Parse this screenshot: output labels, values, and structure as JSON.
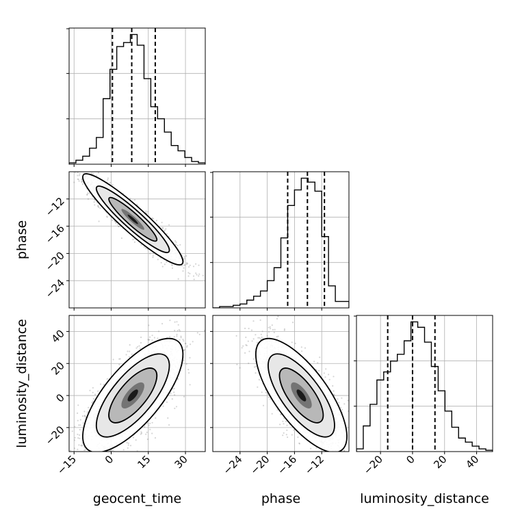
{
  "chart_data": {
    "type": "corner",
    "parameters": [
      "geocent_time",
      "phase",
      "luminosity_distance"
    ],
    "ranges": {
      "geocent_time": [
        -17,
        38
      ],
      "phase": [
        -28,
        -8
      ],
      "luminosity_distance": [
        -35,
        50
      ]
    },
    "quantiles": {
      "geocent_time": [
        0.5,
        8.3,
        17.8
      ],
      "phase": [
        -17.0,
        -14.1,
        -11.6
      ],
      "luminosity_distance": [
        -15.5,
        0.0,
        14.0
      ]
    },
    "correlations": {
      "geocent_time|phase": -0.93,
      "geocent_time|luminosity_distance": 0.72,
      "phase|luminosity_distance": -0.72
    },
    "histograms": {
      "geocent_time": {
        "edges": [
          -17,
          -14.25,
          -11.5,
          -8.75,
          -6,
          -3.25,
          -0.5,
          2.25,
          5,
          7.75,
          10.5,
          13.25,
          16,
          18.75,
          21.5,
          24.25,
          27,
          29.75,
          32.5,
          35.25,
          38
        ],
        "counts": [
          0.01,
          0.03,
          0.06,
          0.12,
          0.2,
          0.49,
          0.71,
          0.88,
          0.91,
          0.97,
          0.89,
          0.64,
          0.43,
          0.34,
          0.24,
          0.14,
          0.1,
          0.05,
          0.02,
          0.01
        ]
      },
      "phase": {
        "edges": [
          -28,
          -27,
          -26,
          -25,
          -24,
          -23,
          -22,
          -21,
          -20,
          -19,
          -18,
          -17,
          -16,
          -15,
          -14,
          -13,
          -12,
          -11,
          -10,
          -9,
          -8
        ],
        "counts": [
          0.0,
          0.01,
          0.01,
          0.02,
          0.03,
          0.06,
          0.09,
          0.13,
          0.21,
          0.31,
          0.54,
          0.79,
          0.91,
          1.0,
          0.97,
          0.9,
          0.55,
          0.17,
          0.05,
          0.05
        ]
      },
      "luminosity_distance": {
        "edges": [
          -35,
          -30.75,
          -26.5,
          -22.25,
          -18,
          -13.75,
          -9.5,
          -5.25,
          -1,
          3.25,
          7.5,
          11.75,
          16,
          20.25,
          24.5,
          28.75,
          33,
          37.25,
          41.5,
          45.75,
          50
        ],
        "counts": [
          0.02,
          0.19,
          0.35,
          0.53,
          0.59,
          0.67,
          0.72,
          0.82,
          0.96,
          0.92,
          0.81,
          0.63,
          0.45,
          0.3,
          0.18,
          0.1,
          0.07,
          0.04,
          0.02,
          0.01
        ]
      }
    },
    "ticks": {
      "geocent_time": [
        -15,
        0,
        15,
        30
      ],
      "phase": [
        -24,
        -20,
        -16,
        -12
      ],
      "luminosity_distance": [
        -20,
        0,
        20,
        40
      ]
    },
    "axis_labels": {
      "geocent_time": "geocent_time",
      "phase": "phase",
      "luminosity_distance": "luminosity_distance"
    },
    "colors": {
      "line": "#000000",
      "points": "#888888",
      "grid": "#b0b0b0"
    },
    "grid": true
  }
}
